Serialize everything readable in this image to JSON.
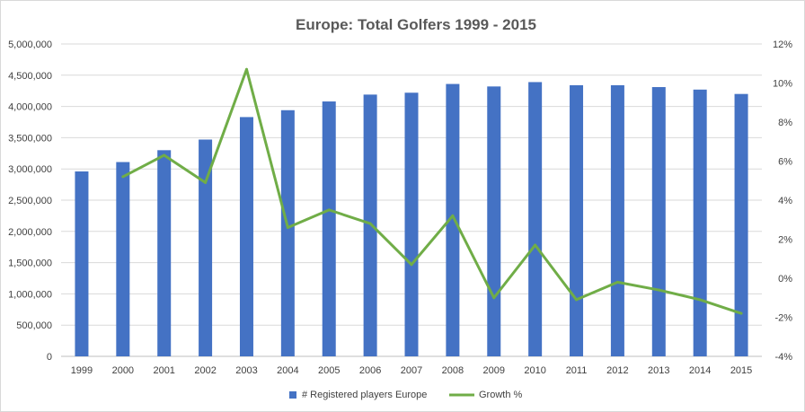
{
  "chart_data": {
    "type": "bar",
    "title": "Europe: Total Golfers 1999 - 2015",
    "categories": [
      "1999",
      "2000",
      "2001",
      "2002",
      "2003",
      "2004",
      "2005",
      "2006",
      "2007",
      "2008",
      "2009",
      "2010",
      "2011",
      "2012",
      "2013",
      "2014",
      "2015"
    ],
    "series": [
      {
        "name": "# Registered players Europe",
        "type": "bar",
        "axis": "left",
        "color": "#4472c4",
        "values": [
          2960000,
          3110000,
          3300000,
          3470000,
          3830000,
          3940000,
          4080000,
          4190000,
          4220000,
          4360000,
          4320000,
          4390000,
          4340000,
          4340000,
          4310000,
          4270000,
          4200000
        ]
      },
      {
        "name": "Growth %",
        "type": "line",
        "axis": "right",
        "color": "#70ad47",
        "values": [
          null,
          5.2,
          6.3,
          4.9,
          10.7,
          2.6,
          3.5,
          2.8,
          0.7,
          3.2,
          -1.0,
          1.7,
          -1.1,
          -0.2,
          -0.6,
          -1.1,
          -1.8
        ]
      }
    ],
    "y_left": {
      "ylim": [
        0,
        5000000
      ],
      "ticks": [
        "0",
        "500,000",
        "1,000,000",
        "1,500,000",
        "2,000,000",
        "2,500,000",
        "3,000,000",
        "3,500,000",
        "4,000,000",
        "4,500,000",
        "5,000,000"
      ]
    },
    "y_right": {
      "ylim": [
        -4,
        12
      ],
      "ticks": [
        "-4%",
        "-2%",
        "0%",
        "2%",
        "4%",
        "6%",
        "8%",
        "10%",
        "12%"
      ]
    },
    "grid": true,
    "legend_position": "bottom"
  }
}
